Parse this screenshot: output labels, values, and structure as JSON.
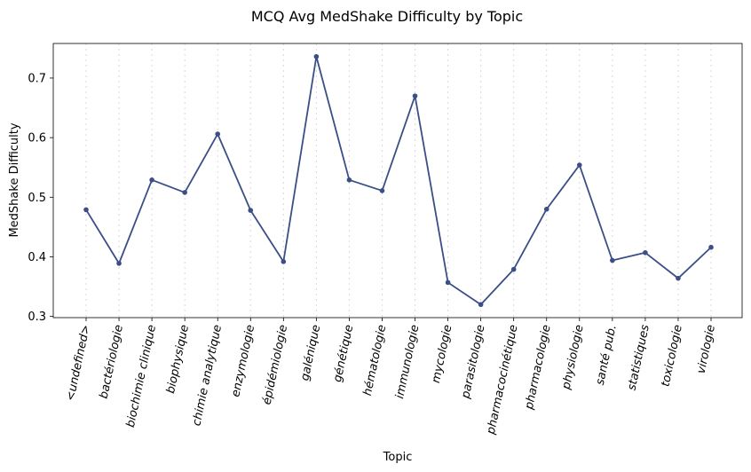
{
  "chart_data": {
    "type": "line",
    "title": "MCQ Avg MedShake Difficulty by Topic",
    "xlabel": "Topic",
    "ylabel": "MedShake Difficulty",
    "categories": [
      "<undefined>",
      "bactériologie",
      "biochimie clinique",
      "biophysique",
      "chimie analytique",
      "enzymologie",
      "épidémiologie",
      "galénique",
      "génétique",
      "hématologie",
      "immunologie",
      "mycologie",
      "parasitologie",
      "pharmacocinétique",
      "pharmacologie",
      "physiologie",
      "santé pub.",
      "statistiques",
      "toxicologie",
      "virologie"
    ],
    "series": [
      {
        "values": [
          0.479,
          0.389,
          0.529,
          0.508,
          0.606,
          0.478,
          0.392,
          0.736,
          0.529,
          0.511,
          0.67,
          0.357,
          0.32,
          0.379,
          0.48,
          0.554,
          0.394,
          0.407,
          0.364,
          0.416
        ]
      }
    ],
    "ylim": [
      0.298,
      0.758
    ],
    "yticks": [
      0.3,
      0.4,
      0.5,
      0.6,
      0.7
    ],
    "ytick_labels": [
      "0.3",
      "0.4",
      "0.5",
      "0.6",
      "0.7"
    ],
    "grid": "vertical-dotted",
    "line_color": "#3b4f86"
  }
}
